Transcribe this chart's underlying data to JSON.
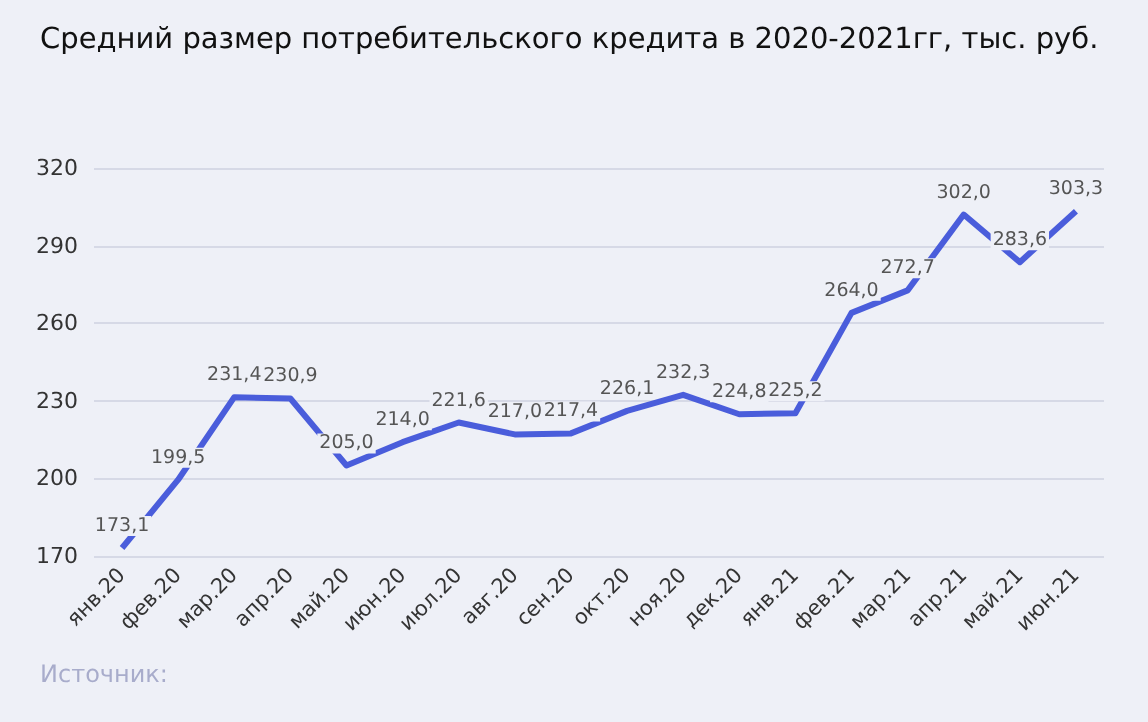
{
  "chart_data": {
    "type": "line",
    "title": "Средний размер потребительского кредита в 2020-2021гг,  тыс. руб.",
    "categories": [
      "янв.20",
      "фев.20",
      "мар.20",
      "апр.20",
      "май.20",
      "июн.20",
      "июл.20",
      "авг.20",
      "сен.20",
      "окт.20",
      "ноя.20",
      "дек.20",
      "янв.21",
      "фев.21",
      "мар.21",
      "апр.21",
      "май.21",
      "июн.21"
    ],
    "series": [
      {
        "color": "#4a5ddb",
        "values": [
          173.1,
          199.5,
          231.4,
          230.9,
          205.0,
          214.0,
          221.6,
          217.0,
          217.4,
          226.1,
          232.3,
          224.8,
          225.2,
          264.0,
          272.7,
          302.0,
          283.6,
          303.3
        ],
        "value_labels": [
          "173,1",
          "199,5",
          "231,4",
          "230,9",
          "205,0",
          "214,0",
          "221,6",
          "217,0",
          "217,4",
          "226,1",
          "232,3",
          "224,8",
          "225,2",
          "264,0",
          "272,7",
          "302,0",
          "283,6",
          "303,3"
        ]
      }
    ],
    "ylim": [
      170,
      320
    ],
    "yticks": [
      170,
      200,
      230,
      260,
      290,
      320
    ],
    "grid": "y",
    "marker": "none",
    "line_style": "solid",
    "annotations": [
      "Источник:"
    ]
  }
}
